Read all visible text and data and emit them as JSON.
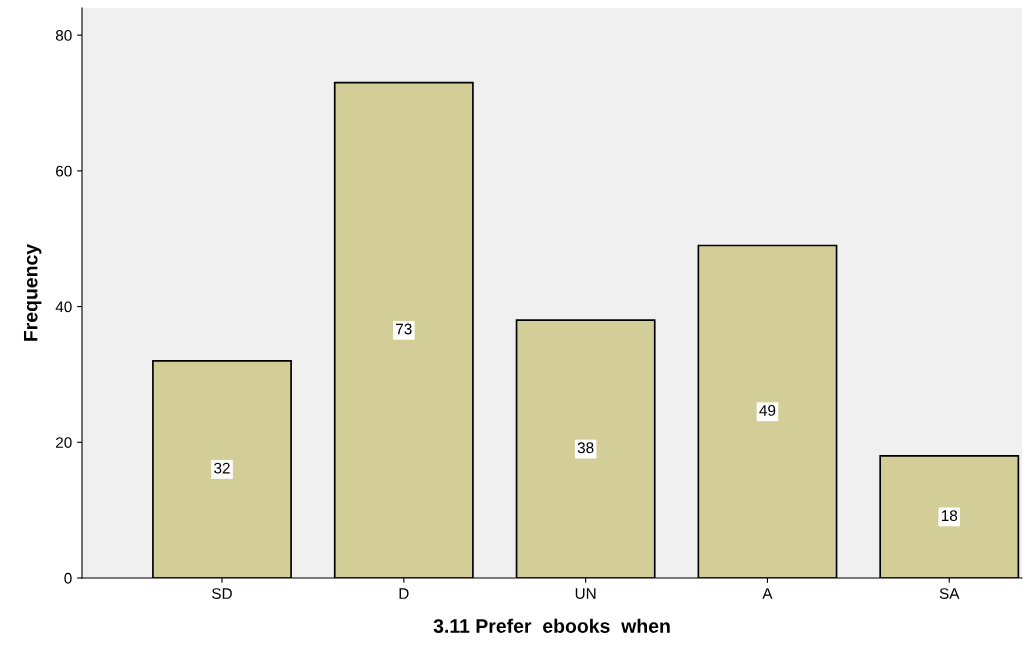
{
  "chart_data": {
    "type": "bar",
    "xlabel": "3.11 Prefer  ebooks  when",
    "ylabel": "Frequency",
    "categories": [
      "SD",
      "D",
      "UN",
      "A",
      "SA"
    ],
    "values": [
      32,
      73,
      38,
      49,
      18
    ],
    "color": "#d3ce97",
    "ylim": [
      0,
      84
    ],
    "yticks": [
      0,
      20,
      40,
      60,
      80
    ],
    "data_labels": true,
    "grid": false,
    "legend": false
  }
}
